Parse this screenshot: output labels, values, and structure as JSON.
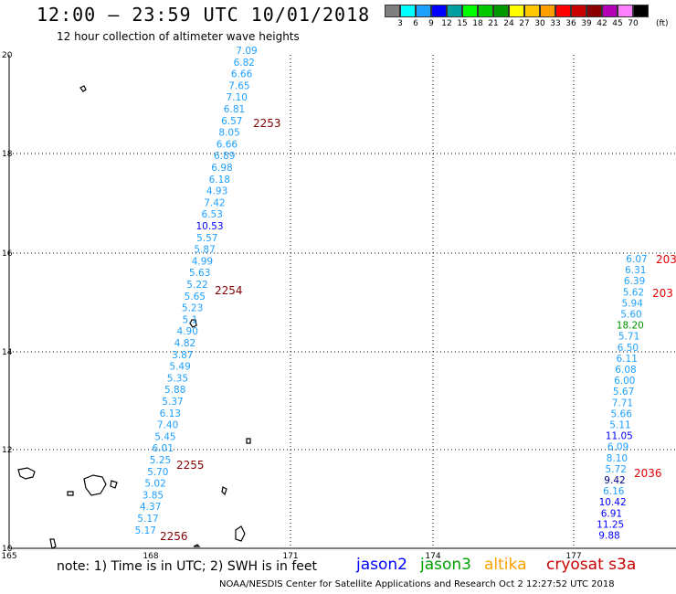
{
  "header": {
    "title": "12:00 – 23:59 UTC 10/01/2018",
    "subtitle": "12 hour collection of altimeter wave heights"
  },
  "colorbar": {
    "colors": [
      "#7f7f7f",
      "#00ffff",
      "#1ea0ff",
      "#0000ff",
      "#00a0a0",
      "#00ff00",
      "#00c800",
      "#009600",
      "#ffff00",
      "#ffc800",
      "#ffa000",
      "#ff0000",
      "#c80000",
      "#8b0000",
      "#b400b4",
      "#ff80ff",
      "#000000"
    ],
    "labels": [
      "3",
      "6",
      "9",
      "12",
      "15",
      "18",
      "21",
      "24",
      "27",
      "30",
      "33",
      "36",
      "39",
      "42",
      "45",
      "70"
    ],
    "unit": "(ft)"
  },
  "axes": {
    "lon_ticks": [
      "165",
      "168",
      "171",
      "174",
      "177"
    ],
    "lat_ticks": [
      "20",
      "18",
      "16",
      "14",
      "12",
      "10"
    ]
  },
  "tracks": [
    {
      "time": "2253",
      "points": [
        {
          "v": "7.09",
          "c": "#1ea0ff"
        },
        {
          "v": "6.82",
          "c": "#1ea0ff"
        },
        {
          "v": "6.66",
          "c": "#1ea0ff"
        },
        {
          "v": "7.65",
          "c": "#1ea0ff"
        },
        {
          "v": "7.10",
          "c": "#1ea0ff"
        },
        {
          "v": "6.81",
          "c": "#1ea0ff"
        },
        {
          "v": "6.57",
          "c": "#1ea0ff"
        },
        {
          "v": "8.05",
          "c": "#1ea0ff"
        },
        {
          "v": "6.66",
          "c": "#1ea0ff"
        },
        {
          "v": "6.89",
          "c": "#1ea0ff"
        },
        {
          "v": "6.98",
          "c": "#1ea0ff"
        },
        {
          "v": "6.18",
          "c": "#1ea0ff"
        },
        {
          "v": "4.93",
          "c": "#1ea0ff"
        },
        {
          "v": "7.42",
          "c": "#1ea0ff"
        },
        {
          "v": "6.53",
          "c": "#1ea0ff"
        },
        {
          "v": "10.53",
          "c": "#0000ff"
        },
        {
          "v": "5.57",
          "c": "#1ea0ff"
        },
        {
          "v": "5.87",
          "c": "#1ea0ff"
        },
        {
          "v": "4.99",
          "c": "#1ea0ff"
        },
        {
          "v": "5.63",
          "c": "#1ea0ff"
        },
        {
          "v": "5.22",
          "c": "#1ea0ff"
        },
        {
          "v": "5.65",
          "c": "#1ea0ff"
        },
        {
          "v": "5.23",
          "c": "#1ea0ff"
        },
        {
          "v": "5.1",
          "c": "#1ea0ff"
        },
        {
          "v": "4.90",
          "c": "#1ea0ff"
        },
        {
          "v": "4.82",
          "c": "#1ea0ff"
        },
        {
          "v": "3.87",
          "c": "#1ea0ff"
        },
        {
          "v": "5.49",
          "c": "#1ea0ff"
        },
        {
          "v": "5.35",
          "c": "#1ea0ff"
        },
        {
          "v": "5.88",
          "c": "#1ea0ff"
        },
        {
          "v": "5.37",
          "c": "#1ea0ff"
        },
        {
          "v": "6.13",
          "c": "#1ea0ff"
        },
        {
          "v": "7.40",
          "c": "#1ea0ff"
        },
        {
          "v": "5.45",
          "c": "#1ea0ff"
        },
        {
          "v": "6.01",
          "c": "#1ea0ff"
        },
        {
          "v": "5.25",
          "c": "#1ea0ff"
        },
        {
          "v": "5.70",
          "c": "#1ea0ff"
        },
        {
          "v": "5.02",
          "c": "#1ea0ff"
        },
        {
          "v": "3.85",
          "c": "#1ea0ff"
        },
        {
          "v": "4.37",
          "c": "#1ea0ff"
        },
        {
          "v": "5.17",
          "c": "#1ea0ff"
        },
        {
          "v": "5.17",
          "c": "#1ea0ff"
        }
      ],
      "time_labels": [
        "2253",
        "2254",
        "2255",
        "2256"
      ]
    },
    {
      "time": "2036",
      "points": [
        {
          "v": "6.07",
          "c": "#1ea0ff"
        },
        {
          "v": "6.31",
          "c": "#1ea0ff"
        },
        {
          "v": "6.39",
          "c": "#1ea0ff"
        },
        {
          "v": "5.62",
          "c": "#1ea0ff"
        },
        {
          "v": "5.94",
          "c": "#1ea0ff"
        },
        {
          "v": "5.60",
          "c": "#1ea0ff"
        },
        {
          "v": "18.20",
          "c": "#009600"
        },
        {
          "v": "5.71",
          "c": "#1ea0ff"
        },
        {
          "v": "6.50",
          "c": "#1ea0ff"
        },
        {
          "v": "6.11",
          "c": "#1ea0ff"
        },
        {
          "v": "6.08",
          "c": "#1ea0ff"
        },
        {
          "v": "6.00",
          "c": "#1ea0ff"
        },
        {
          "v": "5.67",
          "c": "#1ea0ff"
        },
        {
          "v": "7.71",
          "c": "#1ea0ff"
        },
        {
          "v": "5.66",
          "c": "#1ea0ff"
        },
        {
          "v": "5.11",
          "c": "#1ea0ff"
        },
        {
          "v": "11.05",
          "c": "#0000ff"
        },
        {
          "v": "6.09",
          "c": "#1ea0ff"
        },
        {
          "v": "8.10",
          "c": "#1ea0ff"
        },
        {
          "v": "5.72",
          "c": "#1ea0ff"
        },
        {
          "v": "9.42",
          "c": "#00008b"
        },
        {
          "v": "6.16",
          "c": "#1ea0ff"
        },
        {
          "v": "10.42",
          "c": "#0000ff"
        },
        {
          "v": "6.91",
          "c": "#0000ff"
        },
        {
          "v": "11.25",
          "c": "#0000ff"
        },
        {
          "v": "9.88",
          "c": "#0000ff"
        }
      ],
      "time_labels": [
        "203",
        "203",
        "2036"
      ]
    }
  ],
  "note": "note: 1) Time is in UTC; 2) SWH is in feet",
  "legend": [
    {
      "label": "jason2",
      "color": "#0000ff"
    },
    {
      "label": "jason3",
      "color": "#00a000"
    },
    {
      "label": "altika",
      "color": "#ffa000"
    },
    {
      "label": "cryosat s3a",
      "color": "#c80000"
    }
  ],
  "footer": "NOAA/NESDIS Center for Satellite Applications and Research   Oct  2 12:27:52 UTC 2018"
}
